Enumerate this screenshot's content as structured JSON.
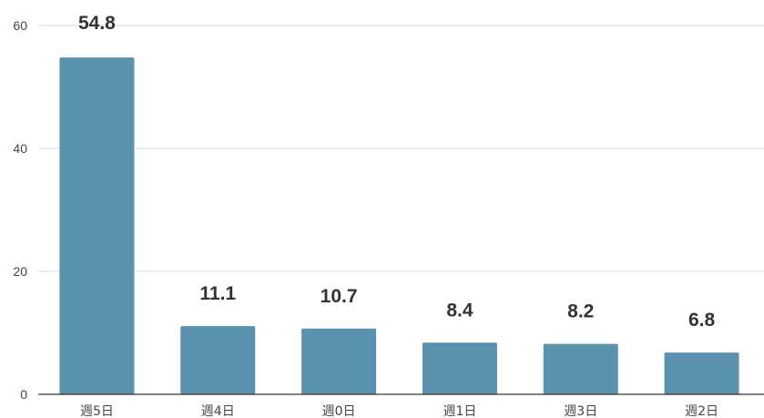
{
  "chart_data": {
    "type": "bar",
    "categories": [
      "週5日",
      "週4日",
      "週0日",
      "週1日",
      "週3日",
      "週2日"
    ],
    "values": [
      54.8,
      11.1,
      10.7,
      8.4,
      8.2,
      6.8
    ],
    "data_labels": [
      "54.8",
      "11.1",
      "10.7",
      "8.4",
      "8.2",
      "6.8"
    ],
    "title": "",
    "xlabel": "",
    "ylabel": "",
    "ylim": [
      0,
      60
    ],
    "yticks": [
      0,
      20,
      40,
      60
    ],
    "grid": true,
    "legend": "none",
    "bar_color": "#5a91ad"
  }
}
